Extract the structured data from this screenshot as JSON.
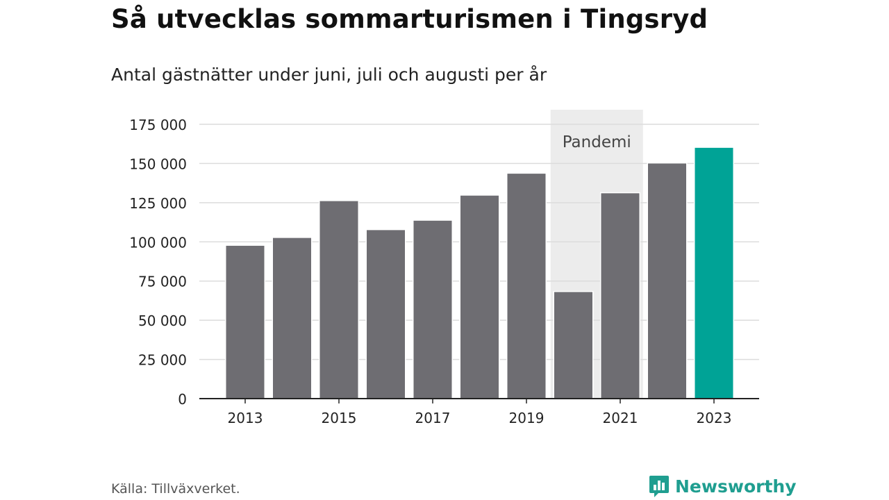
{
  "title": "Så utvecklas sommarturismen i Tingsryd",
  "subtitle": "Antal gästnätter under juni, juli och augusti per år",
  "source": "Källa: Tillväxverket.",
  "logo_text": "Newsworthy",
  "colors": {
    "bar": "#6e6d72",
    "highlight": "#00a396",
    "band": "#ececec",
    "grid": "#dcdcdc",
    "axis": "#222222",
    "logo": "#1f9e90"
  },
  "chart_data": {
    "type": "bar",
    "title": "Så utvecklas sommarturismen i Tingsryd",
    "subtitle": "Antal gästnätter under juni, juli och augusti per år",
    "xlabel": "",
    "ylabel": "",
    "categories": [
      2013,
      2014,
      2015,
      2016,
      2017,
      2018,
      2019,
      2020,
      2021,
      2022,
      2023
    ],
    "values": [
      97500,
      102500,
      126000,
      107500,
      113500,
      129500,
      143500,
      68000,
      131000,
      150000,
      160000
    ],
    "highlight_category": 2023,
    "ylim": [
      0,
      175000
    ],
    "yticks": [
      0,
      25000,
      50000,
      75000,
      100000,
      125000,
      150000,
      175000
    ],
    "ytick_labels": [
      "0",
      "25 000",
      "50 000",
      "75 000",
      "100 000",
      "125 000",
      "150 000",
      "175 000"
    ],
    "xticks": [
      2013,
      2015,
      2017,
      2019,
      2021,
      2023
    ],
    "xtick_labels": [
      "2013",
      "2015",
      "2017",
      "2019",
      "2021",
      "2023"
    ],
    "grid": true,
    "annotation_band": {
      "label": "Pandemi",
      "from": 2020,
      "to": 2021
    }
  }
}
